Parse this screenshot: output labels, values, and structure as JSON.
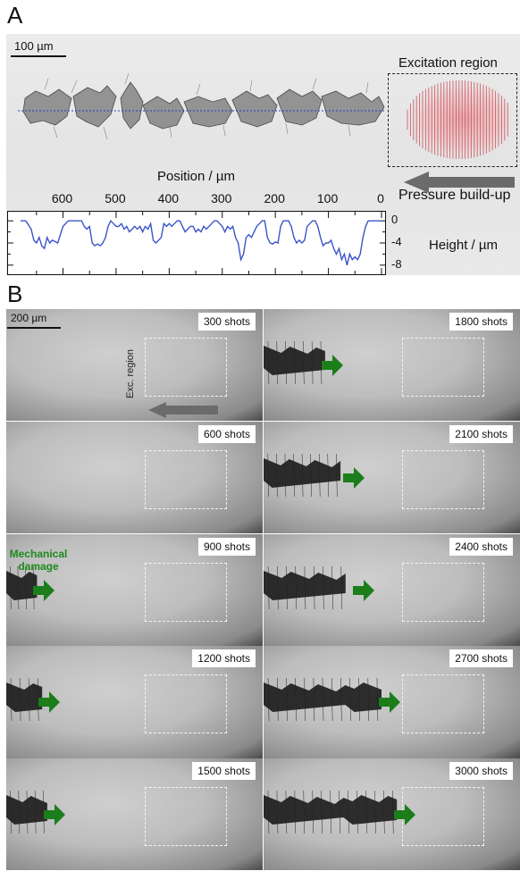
{
  "panels": {
    "a": {
      "letter": "A"
    },
    "b": {
      "letter": "B"
    }
  },
  "panelA": {
    "scalebar_label": "100 µm",
    "excitation_label": "Excitation region",
    "pressure_label": "Pressure build-up",
    "position_axis_label": "Position / µm",
    "position_ticks": [
      "600",
      "500",
      "400",
      "300",
      "200",
      "100",
      "0"
    ],
    "height_axis_label": "Height / µm",
    "height_ticks": [
      "0",
      "-4",
      "-8"
    ],
    "arrow_color": "#6b6b6b",
    "profile_color": "#3a55c8"
  },
  "chart_data": {
    "type": "line",
    "xlabel": "Position / µm",
    "ylabel": "Height / µm",
    "xlim": [
      680,
      0
    ],
    "ylim": [
      -9,
      1
    ],
    "series": [
      {
        "x": [
          680,
          670,
          660,
          655,
          650,
          645,
          640,
          635,
          630,
          625,
          620,
          610,
          600,
          590,
          580,
          570,
          565,
          560,
          555,
          550,
          545,
          540,
          535,
          530,
          525,
          520,
          515,
          510,
          505,
          500,
          495,
          490,
          485,
          480,
          475,
          470,
          465,
          460,
          455,
          450,
          445,
          440,
          435,
          430,
          425,
          420,
          415,
          410,
          405,
          400,
          395,
          390,
          385,
          380,
          375,
          370,
          365,
          360,
          355,
          350,
          345,
          340,
          335,
          330,
          325,
          320,
          315,
          310,
          305,
          300,
          295,
          290,
          285,
          280,
          275,
          270,
          265,
          260,
          255,
          250,
          245,
          240,
          235,
          230,
          225,
          220,
          215,
          210,
          205,
          200,
          195,
          190,
          185,
          180,
          175,
          170,
          165,
          160,
          155,
          150,
          145,
          140,
          135,
          130,
          125,
          120,
          115,
          110,
          105,
          100,
          95,
          90,
          85,
          80,
          75,
          70,
          65,
          60,
          55,
          50,
          45,
          40,
          35,
          30,
          25,
          20,
          15,
          10,
          5,
          0
        ],
        "y": [
          0,
          0,
          -1.5,
          -3.5,
          -4,
          -3,
          -4.5,
          -5,
          -3,
          -4,
          -3.5,
          -4,
          -1,
          0,
          0,
          0,
          0,
          -1,
          -1.5,
          -1,
          -4,
          -4.5,
          -4.2,
          -4.5,
          -4,
          -3,
          -1,
          0,
          -0.5,
          -1,
          -1,
          -0.5,
          -1.5,
          -1,
          -2,
          -1.5,
          -1,
          -1.5,
          -1,
          -2,
          -1,
          -1.5,
          -0.5,
          -3.5,
          -4,
          -3.5,
          -3,
          -0.5,
          -1,
          -0.5,
          -1,
          -0.5,
          0,
          0,
          -1,
          -2,
          -1.5,
          -1,
          -1,
          -2,
          -1.5,
          -2,
          -1,
          -1.5,
          -1,
          -0.5,
          0,
          0,
          -0.5,
          -1,
          -2,
          -1,
          -1.5,
          -1,
          -3,
          -4,
          -7,
          -6,
          -3,
          -2.5,
          -3,
          -2,
          -1,
          -0.5,
          0,
          0,
          -3,
          -4,
          -4.2,
          -3.8,
          -4,
          -1,
          0,
          0,
          0,
          -1,
          -3,
          -4,
          -3.5,
          -4,
          -3.5,
          -1,
          -0.5,
          0,
          0,
          -1,
          -3,
          -4.5,
          -4,
          -4,
          -3.5,
          -5,
          -6,
          -5,
          -7,
          -6,
          -8,
          -6,
          -7,
          -6.5,
          -7,
          -6,
          -3,
          -1,
          0,
          0,
          0,
          0,
          0,
          0
        ]
      }
    ]
  },
  "panelB": {
    "scalebar_label": "200 µm",
    "exc_region_label": "Exc. region",
    "mech_label_1": "Mechanical",
    "mech_label_2": "damage",
    "arrow_color": "#1b7e1b",
    "frames": [
      {
        "label": "300 shots"
      },
      {
        "label": "600 shots"
      },
      {
        "label": "900 shots"
      },
      {
        "label": "1200 shots"
      },
      {
        "label": "1500 shots"
      },
      {
        "label": "1800 shots"
      },
      {
        "label": "2100 shots"
      },
      {
        "label": "2400 shots"
      },
      {
        "label": "2700 shots"
      },
      {
        "label": "3000 shots"
      }
    ]
  }
}
